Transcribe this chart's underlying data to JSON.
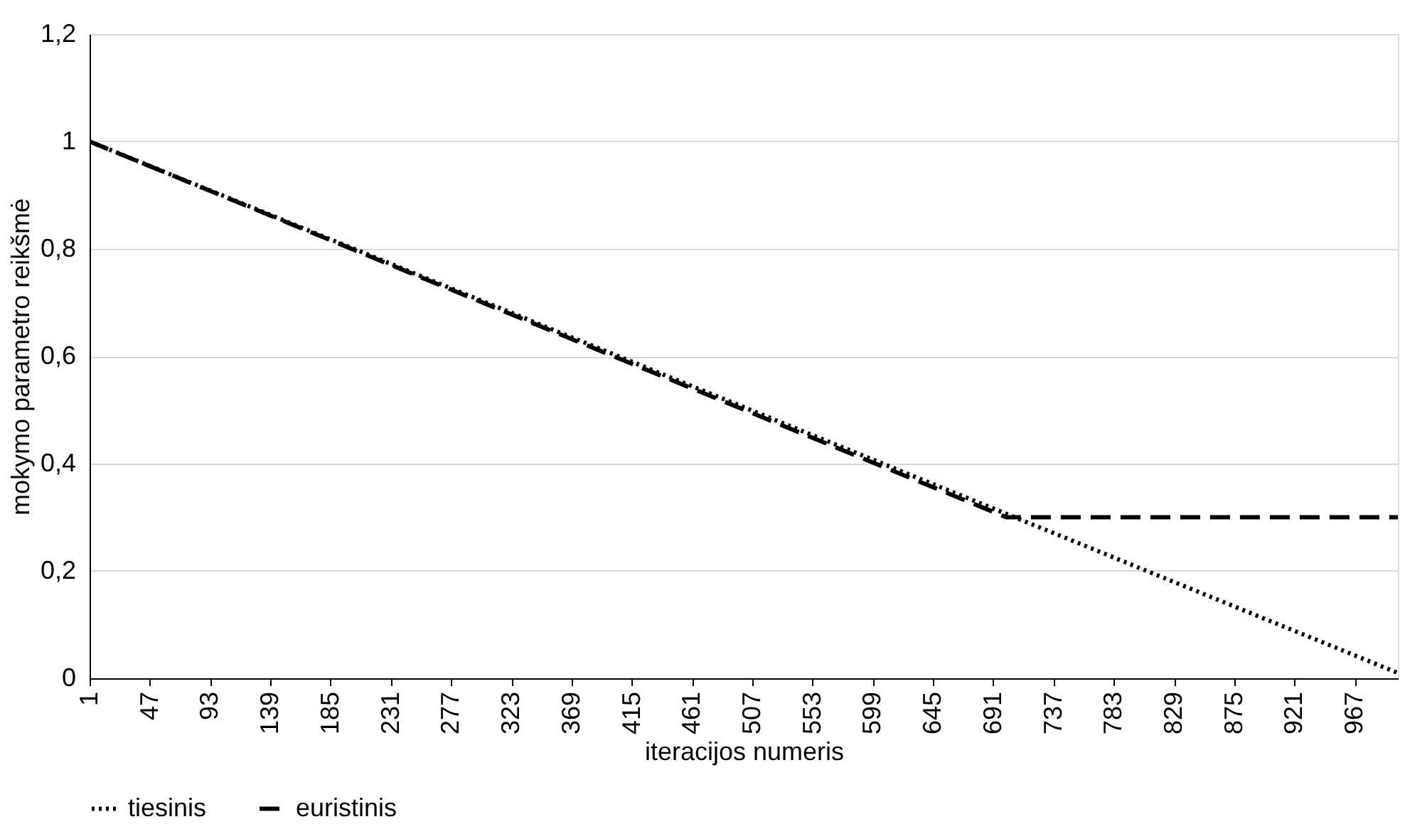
{
  "chart_data": {
    "type": "line",
    "xlabel": "iteracijos numeris",
    "ylabel": "mokymo parametro reikšmė",
    "xlim": [
      1,
      1000
    ],
    "xticks": [
      1,
      47,
      93,
      139,
      185,
      231,
      277,
      323,
      369,
      415,
      461,
      507,
      553,
      599,
      645,
      691,
      737,
      783,
      829,
      875,
      921,
      967
    ],
    "ylim": [
      0,
      1.2
    ],
    "yticks": [
      0,
      {
        "value": 0.2,
        "label": "0,2"
      },
      {
        "value": 0.4,
        "label": "0,4"
      },
      {
        "value": 0.6,
        "label": "0,6"
      },
      {
        "value": 0.8,
        "label": "0,8"
      },
      1,
      {
        "value": 1.2,
        "label": "1,2"
      }
    ],
    "grid": "y",
    "legend": "bottom",
    "marker": "none",
    "series": [
      {
        "name": "tiesinis",
        "color": "#000000",
        "line_style": "dotted",
        "x": [
          1,
          1000
        ],
        "values": [
          1,
          0.01
        ]
      },
      {
        "name": "euristinis",
        "color": "#000000",
        "line_style": "dashed",
        "x": [
          1,
          701,
          1000
        ],
        "values": [
          1,
          0.3,
          0.3
        ]
      }
    ]
  }
}
